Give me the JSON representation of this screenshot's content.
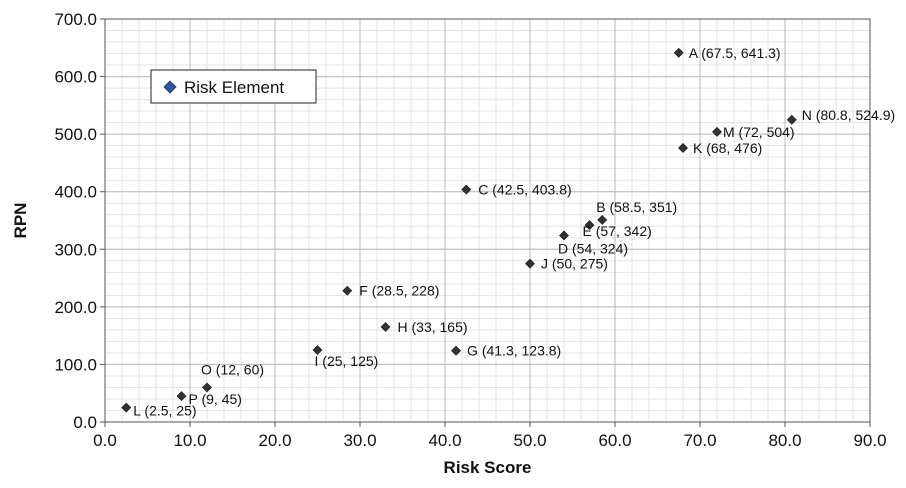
{
  "chart_data": {
    "type": "scatter",
    "title": "",
    "xlabel": "Risk Score",
    "ylabel": "RPN",
    "xlim": [
      0,
      90
    ],
    "ylim": [
      0,
      700
    ],
    "xticks": [
      "0.0",
      "10.0",
      "20.0",
      "30.0",
      "40.0",
      "50.0",
      "60.0",
      "70.0",
      "80.0",
      "90.0"
    ],
    "yticks": [
      "0.0",
      "100.0",
      "200.0",
      "300.0",
      "400.0",
      "500.0",
      "600.0",
      "700.0"
    ],
    "grid": true,
    "legend_position": "top-left",
    "series": [
      {
        "name": "Risk Element",
        "color": "#333333",
        "points": [
          {
            "x": 67.5,
            "y": 641.3,
            "label": "A (67.5, 641.3)"
          },
          {
            "x": 58.5,
            "y": 351,
            "label": "B (58.5, 351)"
          },
          {
            "x": 42.5,
            "y": 403.8,
            "label": "C (42.5, 403.8)"
          },
          {
            "x": 54,
            "y": 324,
            "label": "D (54, 324)"
          },
          {
            "x": 57,
            "y": 342,
            "label": "E (57, 342)"
          },
          {
            "x": 28.5,
            "y": 228,
            "label": "F (28.5, 228)"
          },
          {
            "x": 41.3,
            "y": 123.8,
            "label": "G (41.3, 123.8)"
          },
          {
            "x": 33,
            "y": 165,
            "label": "H (33, 165)"
          },
          {
            "x": 25,
            "y": 125,
            "label": "I (25, 125)"
          },
          {
            "x": 50,
            "y": 275,
            "label": "J (50, 275)"
          },
          {
            "x": 68,
            "y": 476,
            "label": "K (68, 476)"
          },
          {
            "x": 2.5,
            "y": 25,
            "label": "L (2.5, 25)"
          },
          {
            "x": 72,
            "y": 504,
            "label": "M (72, 504)"
          },
          {
            "x": 80.8,
            "y": 524.9,
            "label": "N (80.8, 524.9)"
          },
          {
            "x": 12,
            "y": 60,
            "label": "O (12, 60)"
          },
          {
            "x": 9,
            "y": 45,
            "label": "P (9, 45)"
          }
        ]
      }
    ]
  },
  "legend": {
    "label": "Risk Element",
    "marker_color": "#2f5597"
  }
}
